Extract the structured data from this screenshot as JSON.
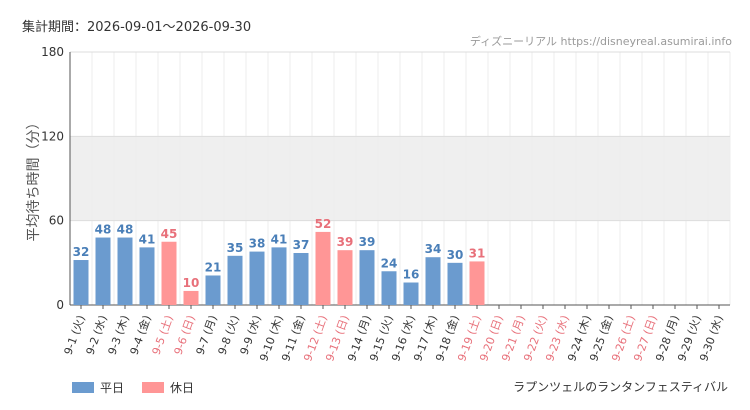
{
  "header": {
    "period": "集計期間：2026-09-01～2026-09-30",
    "source": "ディズニーリアル https://disneyreal.asumirai.info"
  },
  "footer": {
    "attraction": "ラプンツェルのランタンフェスティバル"
  },
  "colors": {
    "weekday": "#6b9bcf",
    "holiday": "#ff9696",
    "weekday_label": "#4a7fb8",
    "holiday_label": "#e8707a",
    "band": "#efefef"
  },
  "chart_data": {
    "type": "bar",
    "ylabel": "平均待ち時間（分）",
    "ylim": [
      0,
      180
    ],
    "yticks": [
      0,
      60,
      120,
      180
    ],
    "shaded_bands": [
      [
        60,
        120
      ]
    ],
    "grid": true,
    "legend_position": "bottom-left",
    "categories": [
      "9-1 (火)",
      "9-2 (水)",
      "9-3 (木)",
      "9-4 (金)",
      "9-5 (土)",
      "9-6 (日)",
      "9-7 (月)",
      "9-8 (火)",
      "9-9 (水)",
      "9-10 (木)",
      "9-11 (金)",
      "9-12 (土)",
      "9-13 (日)",
      "9-14 (月)",
      "9-15 (火)",
      "9-16 (水)",
      "9-17 (木)",
      "9-18 (金)",
      "9-19 (土)",
      "9-20 (日)",
      "9-21 (月)",
      "9-22 (火)",
      "9-23 (水)",
      "9-24 (木)",
      "9-25 (金)",
      "9-26 (土)",
      "9-27 (日)",
      "9-28 (月)",
      "9-29 (火)",
      "9-30 (水)"
    ],
    "day_type": [
      "weekday",
      "weekday",
      "weekday",
      "weekday",
      "holiday",
      "holiday",
      "weekday",
      "weekday",
      "weekday",
      "weekday",
      "weekday",
      "holiday",
      "holiday",
      "weekday",
      "weekday",
      "weekday",
      "weekday",
      "weekday",
      "holiday",
      "holiday",
      "holiday",
      "holiday",
      "holiday",
      "weekday",
      "weekday",
      "holiday",
      "holiday",
      "weekday",
      "weekday",
      "weekday"
    ],
    "series": [
      {
        "name": "平日",
        "key": "weekday"
      },
      {
        "name": "休日",
        "key": "holiday"
      }
    ],
    "values": [
      32,
      48,
      48,
      41,
      45,
      10,
      21,
      35,
      38,
      41,
      37,
      52,
      39,
      39,
      24,
      16,
      34,
      30,
      31,
      null,
      null,
      null,
      null,
      null,
      null,
      null,
      null,
      null,
      null,
      null
    ]
  }
}
